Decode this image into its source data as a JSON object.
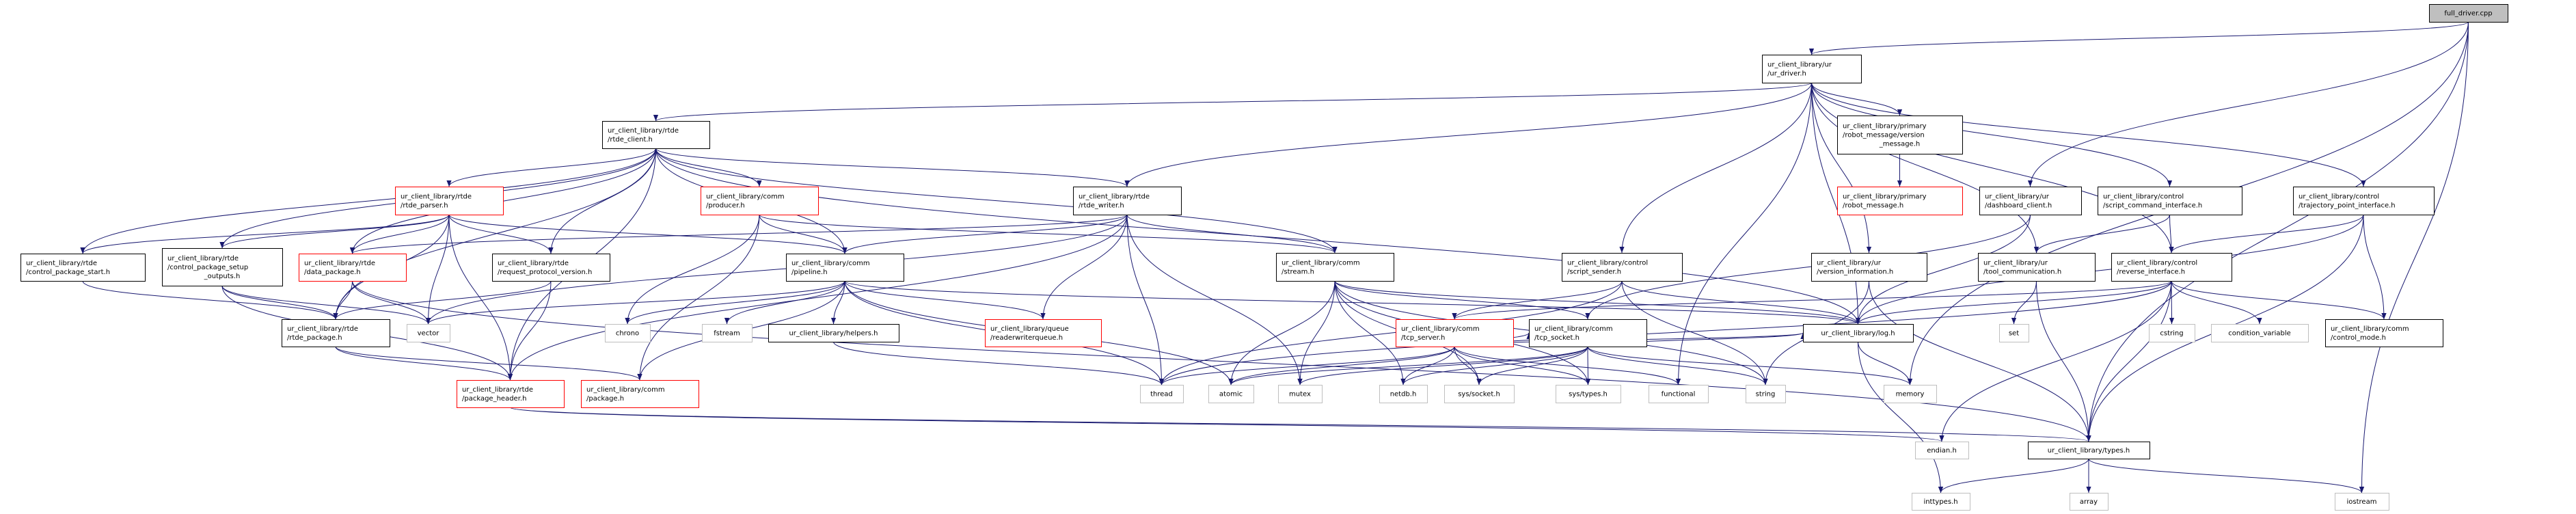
{
  "diagram": {
    "type": "include-dependency-graph",
    "colors": {
      "edge": "#191970",
      "normal_border": "#000000",
      "incomplete_border": "#ff0000",
      "system_border": "#bfbfbf",
      "root_fill": "#bfbfbf"
    },
    "nodes": [
      {
        "id": "full_driver",
        "lines": [
          "full_driver.cpp"
        ],
        "style": "root"
      },
      {
        "id": "ur_driver",
        "lines": [
          "ur_client_library/ur",
          "/ur_driver.h"
        ],
        "style": "normal"
      },
      {
        "id": "rtde_client",
        "lines": [
          "ur_client_library/rtde",
          "/rtde_client.h"
        ],
        "style": "normal"
      },
      {
        "id": "version_message",
        "lines": [
          "ur_client_library/primary",
          "/robot_message/version",
          "_message.h"
        ],
        "style": "normal"
      },
      {
        "id": "robot_message",
        "lines": [
          "ur_client_library/primary",
          "/robot_message.h"
        ],
        "style": "red"
      },
      {
        "id": "rtde_parser",
        "lines": [
          "ur_client_library/rtde",
          "/rtde_parser.h"
        ],
        "style": "red"
      },
      {
        "id": "producer",
        "lines": [
          "ur_client_library/comm",
          "/producer.h"
        ],
        "style": "red"
      },
      {
        "id": "rtde_writer",
        "lines": [
          "ur_client_library/rtde",
          "/rtde_writer.h"
        ],
        "style": "normal"
      },
      {
        "id": "dashboard_client",
        "lines": [
          "ur_client_library/ur",
          "/dashboard_client.h"
        ],
        "style": "normal"
      },
      {
        "id": "script_command_interface",
        "lines": [
          "ur_client_library/control",
          "/script_command_interface.h"
        ],
        "style": "normal"
      },
      {
        "id": "trajectory_point_interface",
        "lines": [
          "ur_client_library/control",
          "/trajectory_point_interface.h"
        ],
        "style": "normal"
      },
      {
        "id": "control_package_start",
        "lines": [
          "ur_client_library/rtde",
          "/control_package_start.h"
        ],
        "style": "normal"
      },
      {
        "id": "control_package_setup_outputs",
        "lines": [
          "ur_client_library/rtde",
          "/control_package_setup",
          "_outputs.h"
        ],
        "style": "normal"
      },
      {
        "id": "data_package",
        "lines": [
          "ur_client_library/rtde",
          "/data_package.h"
        ],
        "style": "red"
      },
      {
        "id": "request_protocol_version",
        "lines": [
          "ur_client_library/rtde",
          "/request_protocol_version.h"
        ],
        "style": "normal"
      },
      {
        "id": "pipeline",
        "lines": [
          "ur_client_library/comm",
          "/pipeline.h"
        ],
        "style": "normal"
      },
      {
        "id": "stream",
        "lines": [
          "ur_client_library/comm",
          "/stream.h"
        ],
        "style": "normal"
      },
      {
        "id": "script_sender",
        "lines": [
          "ur_client_library/control",
          "/script_sender.h"
        ],
        "style": "normal"
      },
      {
        "id": "version_information",
        "lines": [
          "ur_client_library/ur",
          "/version_information.h"
        ],
        "style": "normal"
      },
      {
        "id": "tool_communication",
        "lines": [
          "ur_client_library/ur",
          "/tool_communication.h"
        ],
        "style": "normal"
      },
      {
        "id": "reverse_interface",
        "lines": [
          "ur_client_library/control",
          "/reverse_interface.h"
        ],
        "style": "normal"
      },
      {
        "id": "rtde_package",
        "lines": [
          "ur_client_library/rtde",
          "/rtde_package.h"
        ],
        "style": "normal"
      },
      {
        "id": "vector",
        "lines": [
          "vector"
        ],
        "style": "sys"
      },
      {
        "id": "chrono",
        "lines": [
          "chrono"
        ],
        "style": "sys"
      },
      {
        "id": "fstream",
        "lines": [
          "fstream"
        ],
        "style": "sys"
      },
      {
        "id": "helpers",
        "lines": [
          "ur_client_library/helpers.h"
        ],
        "style": "normal"
      },
      {
        "id": "readerwriterqueue",
        "lines": [
          "ur_client_library/queue",
          "/readerwriterqueue.h"
        ],
        "style": "red"
      },
      {
        "id": "tcp_server",
        "lines": [
          "ur_client_library/comm",
          "/tcp_server.h"
        ],
        "style": "red"
      },
      {
        "id": "tcp_socket",
        "lines": [
          "ur_client_library/comm",
          "/tcp_socket.h"
        ],
        "style": "normal"
      },
      {
        "id": "log",
        "lines": [
          "ur_client_library/log.h"
        ],
        "style": "normal"
      },
      {
        "id": "set",
        "lines": [
          "set"
        ],
        "style": "sys"
      },
      {
        "id": "cstring",
        "lines": [
          "cstring"
        ],
        "style": "sys"
      },
      {
        "id": "condition_variable",
        "lines": [
          "condition_variable"
        ],
        "style": "sys"
      },
      {
        "id": "control_mode",
        "lines": [
          "ur_client_library/comm",
          "/control_mode.h"
        ],
        "style": "normal"
      },
      {
        "id": "package_header",
        "lines": [
          "ur_client_library/rtde",
          "/package_header.h"
        ],
        "style": "red"
      },
      {
        "id": "package",
        "lines": [
          "ur_client_library/comm",
          "/package.h"
        ],
        "style": "red"
      },
      {
        "id": "thread",
        "lines": [
          "thread"
        ],
        "style": "sys"
      },
      {
        "id": "atomic",
        "lines": [
          "atomic"
        ],
        "style": "sys"
      },
      {
        "id": "mutex",
        "lines": [
          "mutex"
        ],
        "style": "sys"
      },
      {
        "id": "netdb",
        "lines": [
          "netdb.h"
        ],
        "style": "sys"
      },
      {
        "id": "sys_socket",
        "lines": [
          "sys/socket.h"
        ],
        "style": "sys"
      },
      {
        "id": "sys_types",
        "lines": [
          "sys/types.h"
        ],
        "style": "sys"
      },
      {
        "id": "functional",
        "lines": [
          "functional"
        ],
        "style": "sys"
      },
      {
        "id": "string",
        "lines": [
          "string"
        ],
        "style": "sys"
      },
      {
        "id": "memory",
        "lines": [
          "memory"
        ],
        "style": "sys"
      },
      {
        "id": "endian",
        "lines": [
          "endian.h"
        ],
        "style": "sys"
      },
      {
        "id": "types",
        "lines": [
          "ur_client_library/types.h"
        ],
        "style": "normal"
      },
      {
        "id": "inttypes",
        "lines": [
          "inttypes.h"
        ],
        "style": "sys"
      },
      {
        "id": "array",
        "lines": [
          "array"
        ],
        "style": "sys"
      },
      {
        "id": "iostream",
        "lines": [
          "iostream"
        ],
        "style": "sys"
      }
    ],
    "edges": [
      [
        "full_driver",
        "ur_driver"
      ],
      [
        "full_driver",
        "dashboard_client"
      ],
      [
        "full_driver",
        "memory"
      ],
      [
        "full_driver",
        "types"
      ],
      [
        "full_driver",
        "iostream"
      ],
      [
        "ur_driver",
        "rtde_client"
      ],
      [
        "ur_driver",
        "rtde_writer"
      ],
      [
        "ur_driver",
        "version_message"
      ],
      [
        "ur_driver",
        "script_sender"
      ],
      [
        "ur_driver",
        "version_information"
      ],
      [
        "ur_driver",
        "tool_communication"
      ],
      [
        "ur_driver",
        "script_command_interface"
      ],
      [
        "ur_driver",
        "reverse_interface"
      ],
      [
        "ur_driver",
        "trajectory_point_interface"
      ],
      [
        "ur_driver",
        "functional"
      ],
      [
        "ur_driver",
        "log"
      ],
      [
        "version_message",
        "robot_message"
      ],
      [
        "rtde_client",
        "rtde_parser"
      ],
      [
        "rtde_client",
        "producer"
      ],
      [
        "rtde_client",
        "pipeline"
      ],
      [
        "rtde_client",
        "rtde_writer"
      ],
      [
        "rtde_client",
        "stream"
      ],
      [
        "rtde_client",
        "control_package_start"
      ],
      [
        "rtde_client",
        "control_package_setup_outputs"
      ],
      [
        "rtde_client",
        "data_package"
      ],
      [
        "rtde_client",
        "request_protocol_version"
      ],
      [
        "rtde_client",
        "rtde_package"
      ],
      [
        "rtde_client",
        "package_header"
      ],
      [
        "rtde_client",
        "log"
      ],
      [
        "rtde_parser",
        "control_package_start"
      ],
      [
        "rtde_parser",
        "control_package_setup_outputs"
      ],
      [
        "rtde_parser",
        "data_package"
      ],
      [
        "rtde_parser",
        "request_protocol_version"
      ],
      [
        "rtde_parser",
        "pipeline"
      ],
      [
        "rtde_parser",
        "vector"
      ],
      [
        "rtde_parser",
        "package_header"
      ],
      [
        "rtde_parser",
        "rtde_package"
      ],
      [
        "producer",
        "pipeline"
      ],
      [
        "producer",
        "chrono"
      ],
      [
        "producer",
        "package"
      ],
      [
        "producer",
        "stream"
      ],
      [
        "rtde_writer",
        "pipeline"
      ],
      [
        "rtde_writer",
        "data_package"
      ],
      [
        "rtde_writer",
        "stream"
      ],
      [
        "rtde_writer",
        "readerwriterqueue"
      ],
      [
        "rtde_writer",
        "thread"
      ],
      [
        "rtde_writer",
        "mutex"
      ],
      [
        "rtde_writer",
        "package_header"
      ],
      [
        "rtde_writer",
        "vector"
      ],
      [
        "pipeline",
        "readerwriterqueue"
      ],
      [
        "pipeline",
        "helpers"
      ],
      [
        "pipeline",
        "fstream"
      ],
      [
        "pipeline",
        "thread"
      ],
      [
        "pipeline",
        "atomic"
      ],
      [
        "pipeline",
        "package"
      ],
      [
        "pipeline",
        "log"
      ],
      [
        "pipeline",
        "vector"
      ],
      [
        "pipeline",
        "chrono"
      ],
      [
        "stream",
        "tcp_socket"
      ],
      [
        "stream",
        "atomic"
      ],
      [
        "stream",
        "mutex"
      ],
      [
        "stream",
        "netdb"
      ],
      [
        "stream",
        "sys_socket"
      ],
      [
        "stream",
        "sys_types"
      ],
      [
        "stream",
        "string"
      ],
      [
        "stream",
        "log"
      ],
      [
        "script_sender",
        "tcp_server"
      ],
      [
        "script_sender",
        "log"
      ],
      [
        "script_sender",
        "string"
      ],
      [
        "script_sender",
        "thread"
      ],
      [
        "tcp_server",
        "tcp_socket"
      ],
      [
        "tcp_server",
        "thread"
      ],
      [
        "tcp_server",
        "atomic"
      ],
      [
        "tcp_server",
        "netdb"
      ],
      [
        "tcp_server",
        "sys_socket"
      ],
      [
        "tcp_server",
        "sys_types"
      ],
      [
        "tcp_server",
        "functional"
      ],
      [
        "tcp_server",
        "log"
      ],
      [
        "tcp_socket",
        "atomic"
      ],
      [
        "tcp_socket",
        "mutex"
      ],
      [
        "tcp_socket",
        "netdb"
      ],
      [
        "tcp_socket",
        "sys_socket"
      ],
      [
        "tcp_socket",
        "sys_types"
      ],
      [
        "tcp_socket",
        "string"
      ],
      [
        "tcp_socket",
        "memory"
      ],
      [
        "tcp_socket",
        "log"
      ],
      [
        "version_information",
        "string"
      ],
      [
        "version_information",
        "types"
      ],
      [
        "dashboard_client",
        "tcp_socket"
      ],
      [
        "dashboard_client",
        "log"
      ],
      [
        "script_command_interface",
        "tool_communication"
      ],
      [
        "script_command_interface",
        "reverse_interface"
      ],
      [
        "tool_communication",
        "set"
      ],
      [
        "tool_communication",
        "types"
      ],
      [
        "reverse_interface",
        "log"
      ],
      [
        "reverse_interface",
        "tcp_server"
      ],
      [
        "reverse_interface",
        "types"
      ],
      [
        "reverse_interface",
        "endian"
      ],
      [
        "reverse_interface",
        "cstring"
      ],
      [
        "reverse_interface",
        "condition_variable"
      ],
      [
        "reverse_interface",
        "control_mode"
      ],
      [
        "reverse_interface",
        "thread"
      ],
      [
        "trajectory_point_interface",
        "reverse_interface"
      ],
      [
        "trajectory_point_interface",
        "control_mode"
      ],
      [
        "trajectory_point_interface",
        "types"
      ],
      [
        "trajectory_point_interface",
        "log"
      ],
      [
        "control_package_start",
        "rtde_package"
      ],
      [
        "control_package_setup_outputs",
        "rtde_package"
      ],
      [
        "control_package_setup_outputs",
        "vector"
      ],
      [
        "control_package_setup_outputs",
        "package_header"
      ],
      [
        "data_package",
        "rtde_package"
      ],
      [
        "data_package",
        "vector"
      ],
      [
        "data_package",
        "types"
      ],
      [
        "request_protocol_version",
        "rtde_package"
      ],
      [
        "request_protocol_version",
        "package_header"
      ],
      [
        "rtde_package",
        "package_header"
      ],
      [
        "rtde_package",
        "package"
      ],
      [
        "package_header",
        "types"
      ],
      [
        "package_header",
        "endian"
      ],
      [
        "helpers",
        "thread"
      ],
      [
        "log",
        "inttypes"
      ],
      [
        "log",
        "memory"
      ],
      [
        "types",
        "inttypes"
      ],
      [
        "types",
        "array"
      ],
      [
        "types",
        "iostream"
      ]
    ]
  }
}
